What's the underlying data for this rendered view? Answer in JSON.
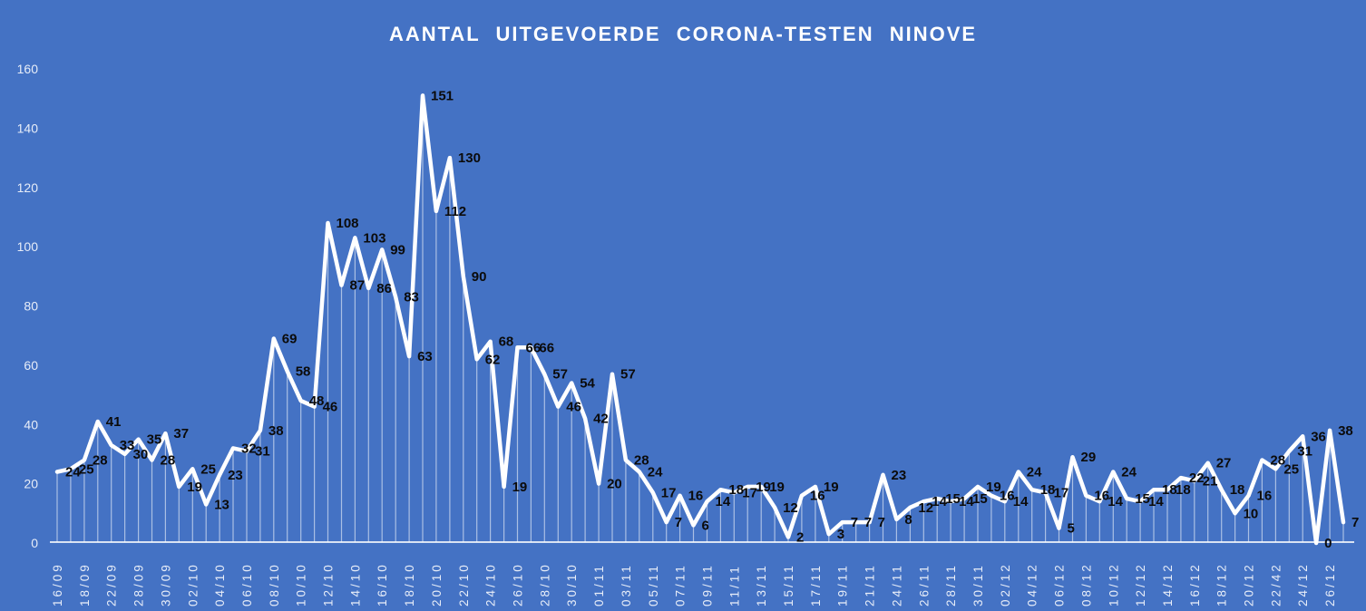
{
  "chart_data": {
    "type": "line",
    "title": "AANTAL UITGEVOERDE CORONA-TESTEN NINOVE",
    "xlabel": "",
    "ylabel": "",
    "ylim": [
      0,
      160
    ],
    "y_ticks": [
      0,
      20,
      40,
      60,
      80,
      100,
      120,
      140,
      160
    ],
    "grid": false,
    "legend": "none",
    "data_labels_visible": true,
    "x_tick_every_n_points": 2,
    "x_tick_labels": [
      "16/09",
      "18/09",
      "22/09",
      "28/09",
      "30/09",
      "02/10",
      "04/10",
      "06/10",
      "08/10",
      "10/10",
      "12/10",
      "14/10",
      "16/10",
      "18/10",
      "20/10",
      "22/10",
      "24/10",
      "26/10",
      "28/10",
      "30/10",
      "01/11",
      "03/11",
      "05/11",
      "07/11",
      "09/11",
      "11/11",
      "13/11",
      "15/11",
      "17/11",
      "19/11",
      "21/11",
      "24/11",
      "26/11",
      "28/11",
      "30/11",
      "02/12",
      "04/12",
      "06/12",
      "08/12",
      "10/12",
      "12/12",
      "14/12",
      "16/12",
      "18/12",
      "20/12",
      "22/42",
      "24/12",
      "26/12"
    ],
    "values": [
      24,
      25,
      28,
      41,
      33,
      30,
      35,
      28,
      37,
      19,
      25,
      13,
      23,
      32,
      31,
      38,
      69,
      58,
      48,
      46,
      108,
      87,
      103,
      86,
      99,
      83,
      63,
      151,
      112,
      130,
      90,
      62,
      68,
      19,
      66,
      66,
      57,
      46,
      54,
      42,
      20,
      57,
      28,
      24,
      17,
      7,
      16,
      6,
      14,
      18,
      17,
      19,
      19,
      12,
      2,
      16,
      19,
      3,
      7,
      7,
      7,
      23,
      8,
      12,
      14,
      15,
      14,
      15,
      19,
      16,
      14,
      24,
      18,
      17,
      5,
      29,
      16,
      14,
      24,
      15,
      14,
      18,
      18,
      22,
      21,
      27,
      18,
      10,
      16,
      28,
      25,
      31,
      36,
      0,
      38,
      7
    ],
    "colors": {
      "background": "#4472C4",
      "line": "#FFFFFF",
      "data_label": "#0B0B0B",
      "axis_label": "#E7EDF8",
      "axis_line": "#FFFFFF",
      "drop_line": "rgba(255,255,255,0.55)"
    }
  }
}
